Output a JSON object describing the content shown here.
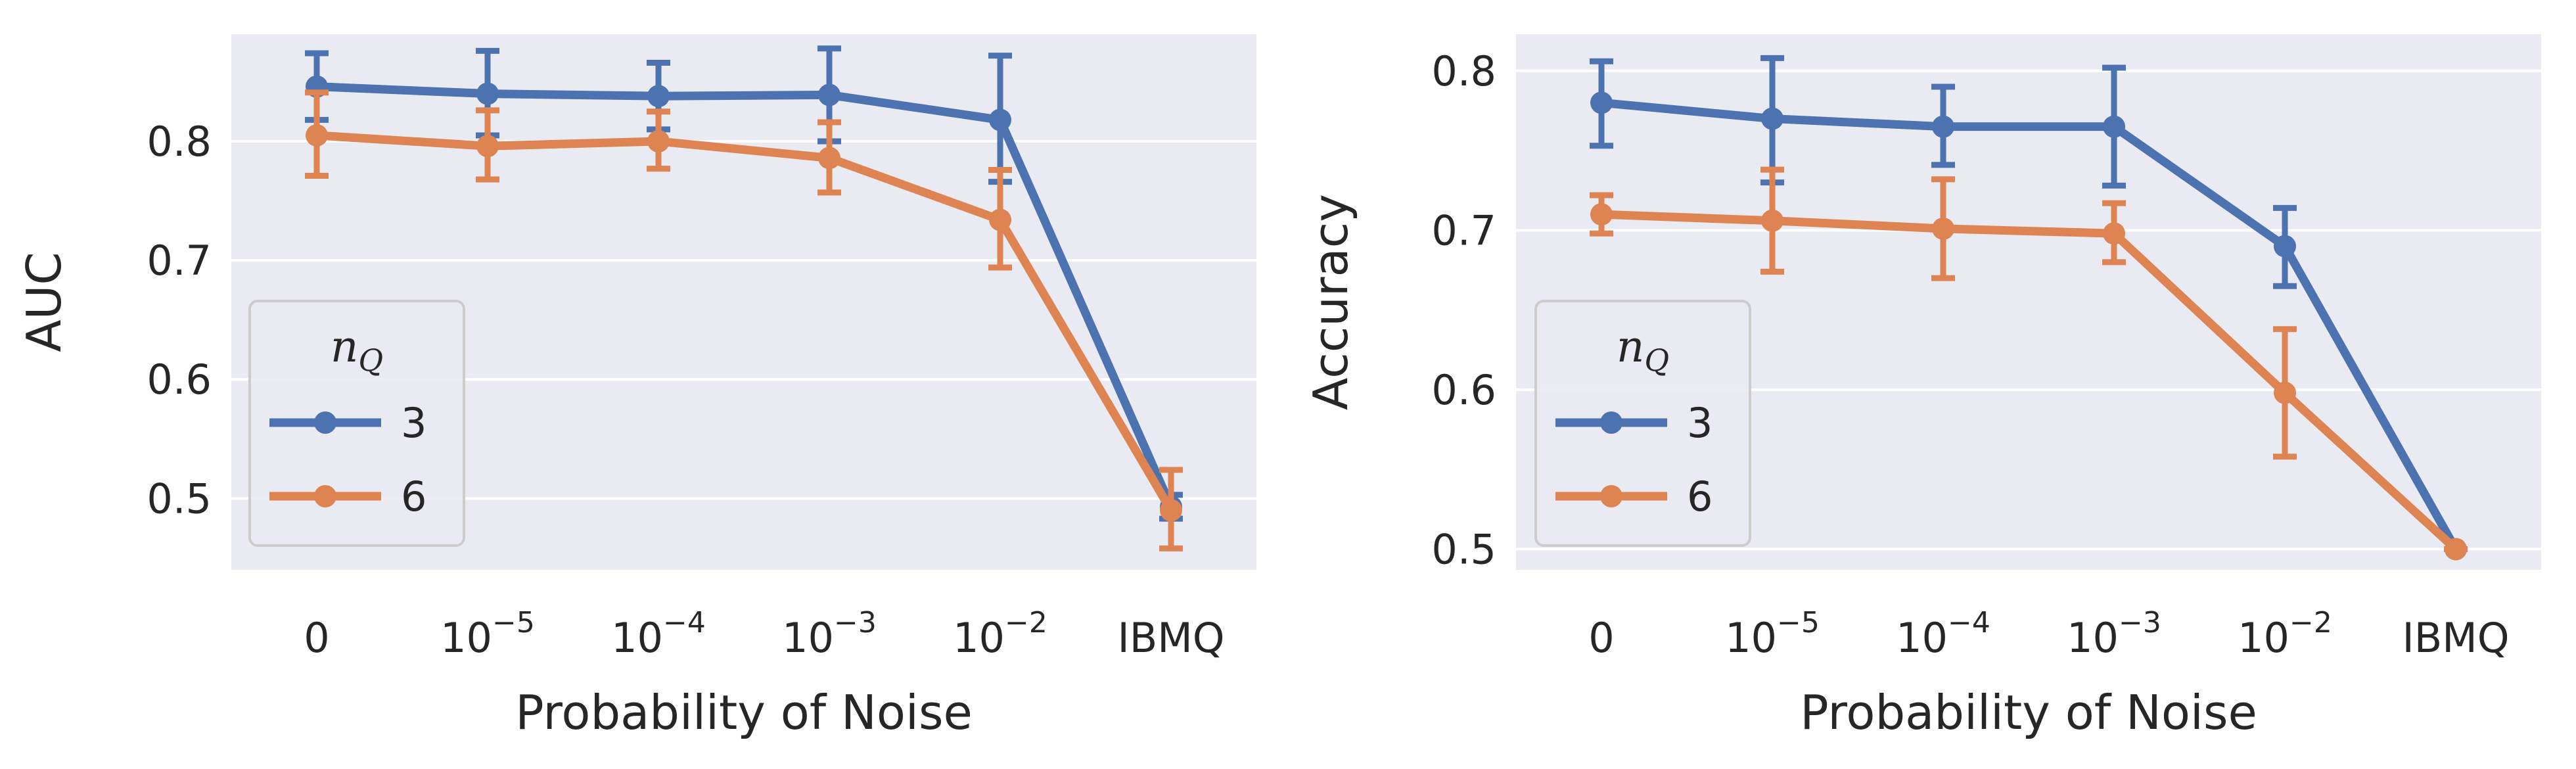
{
  "chart_data": [
    {
      "type": "line",
      "title": "",
      "xlabel": "Probability of Noise",
      "ylabel": "AUC",
      "categories": [
        {
          "base": "0",
          "exp": ""
        },
        {
          "base": "10",
          "exp": "−5"
        },
        {
          "base": "10",
          "exp": "−4"
        },
        {
          "base": "10",
          "exp": "−3"
        },
        {
          "base": "10",
          "exp": "−2"
        },
        {
          "base": "IBMQ",
          "exp": ""
        }
      ],
      "ylim": [
        0.44,
        0.89
      ],
      "yticks": [
        0.5,
        0.6,
        0.7,
        0.8
      ],
      "ytick_labels": [
        "0.5",
        "0.6",
        "0.7",
        "0.8"
      ],
      "grid": true,
      "legend": {
        "title_base": "n",
        "title_sub": "Q",
        "placement": "lower-left"
      },
      "series": [
        {
          "name": "3",
          "color": "#4c72b0",
          "values": [
            0.846,
            0.84,
            0.838,
            0.839,
            0.818,
            0.493
          ],
          "err_low": [
            0.818,
            0.805,
            0.81,
            0.8,
            0.766,
            0.483
          ],
          "err_high": [
            0.874,
            0.876,
            0.866,
            0.878,
            0.872,
            0.503
          ]
        },
        {
          "name": "6",
          "color": "#dd8452",
          "values": [
            0.805,
            0.796,
            0.8,
            0.786,
            0.734,
            0.49
          ],
          "err_low": [
            0.771,
            0.768,
            0.777,
            0.757,
            0.694,
            0.458
          ],
          "err_high": [
            0.841,
            0.826,
            0.825,
            0.816,
            0.776,
            0.524
          ]
        }
      ]
    },
    {
      "type": "line",
      "title": "",
      "xlabel": "Probability of Noise",
      "ylabel": "Accuracy",
      "categories": [
        {
          "base": "0",
          "exp": ""
        },
        {
          "base": "10",
          "exp": "−5"
        },
        {
          "base": "10",
          "exp": "−4"
        },
        {
          "base": "10",
          "exp": "−3"
        },
        {
          "base": "10",
          "exp": "−2"
        },
        {
          "base": "IBMQ",
          "exp": ""
        }
      ],
      "ylim": [
        0.487,
        0.823
      ],
      "yticks": [
        0.5,
        0.6,
        0.7,
        0.8
      ],
      "ytick_labels": [
        "0.5",
        "0.6",
        "0.7",
        "0.8"
      ],
      "grid": true,
      "legend": {
        "title_base": "n",
        "title_sub": "Q",
        "placement": "lower-left"
      },
      "series": [
        {
          "name": "3",
          "color": "#4c72b0",
          "values": [
            0.78,
            0.77,
            0.765,
            0.765,
            0.69,
            0.5
          ],
          "err_low": [
            0.753,
            0.73,
            0.741,
            0.728,
            0.665,
            0.5
          ],
          "err_high": [
            0.806,
            0.808,
            0.79,
            0.802,
            0.714,
            0.5
          ]
        },
        {
          "name": "6",
          "color": "#dd8452",
          "values": [
            0.71,
            0.706,
            0.701,
            0.698,
            0.598,
            0.5
          ],
          "err_low": [
            0.698,
            0.674,
            0.67,
            0.68,
            0.558,
            0.5
          ],
          "err_high": [
            0.722,
            0.738,
            0.732,
            0.717,
            0.638,
            0.5
          ]
        }
      ]
    }
  ]
}
